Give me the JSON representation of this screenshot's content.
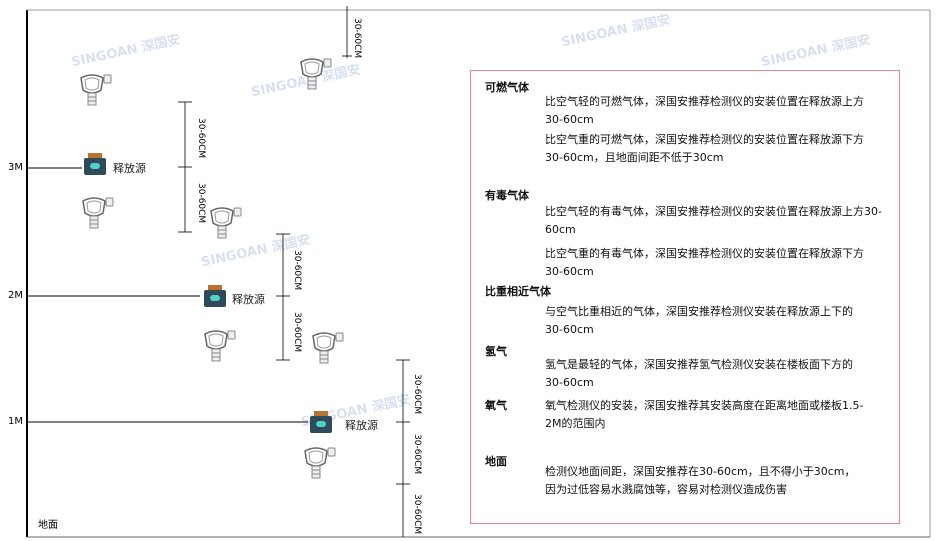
{
  "levels": {
    "l3": "3M",
    "l2": "2M",
    "l1": "1M"
  },
  "ground_label": "地面",
  "source_label": "释放源",
  "dimension_label": "30-60CM",
  "watermark": "SINGOAN 深国安",
  "icons": {
    "detector": "gas-detector-icon",
    "source": "release-source-icon"
  },
  "colors": {
    "box_border": "#e8858a",
    "source_body": "#2f4a5a",
    "source_cap": "#b8742e"
  },
  "notes": {
    "combustible": {
      "title": "可燃气体",
      "lighter": "比空气轻的可燃气体，深国安推荐检测仪的安装位置在释放源上方30-60cm",
      "heavier": "比空气重的可燃气体，深国安推荐检测仪的安装位置在释放源下方30-60cm，且地面间距不低于30cm"
    },
    "toxic": {
      "title": "有毒气体",
      "lighter": "比空气轻的有毒气体，深国安推荐检测仪的安装位置在释放源上方30-60cm",
      "heavier": "比空气重的有毒气体，深国安推荐检测仪的安装位置在释放源下方30-60cm"
    },
    "similar": {
      "title": "比重相近气体",
      "text": "与空气比重相近的气体，深国安推荐检测仪安装在释放源上下的30-60cm"
    },
    "hydrogen": {
      "title": "氢气",
      "text": "氢气是最轻的气体，深国安推荐氢气检测仪安装在楼板面下方的30-60cm"
    },
    "oxygen": {
      "title": "氧气",
      "text": "氧气检测仪的安装，深国安推荐其安装高度在距离地面或楼板1.5-2M的范围内"
    },
    "ground": {
      "title": "地面",
      "text": "检测仪地面间距，深国安推荐在30-60cm，且不得小于30cm，因为过低容易水溅腐蚀等，容易对检测仪造成伤害"
    }
  }
}
